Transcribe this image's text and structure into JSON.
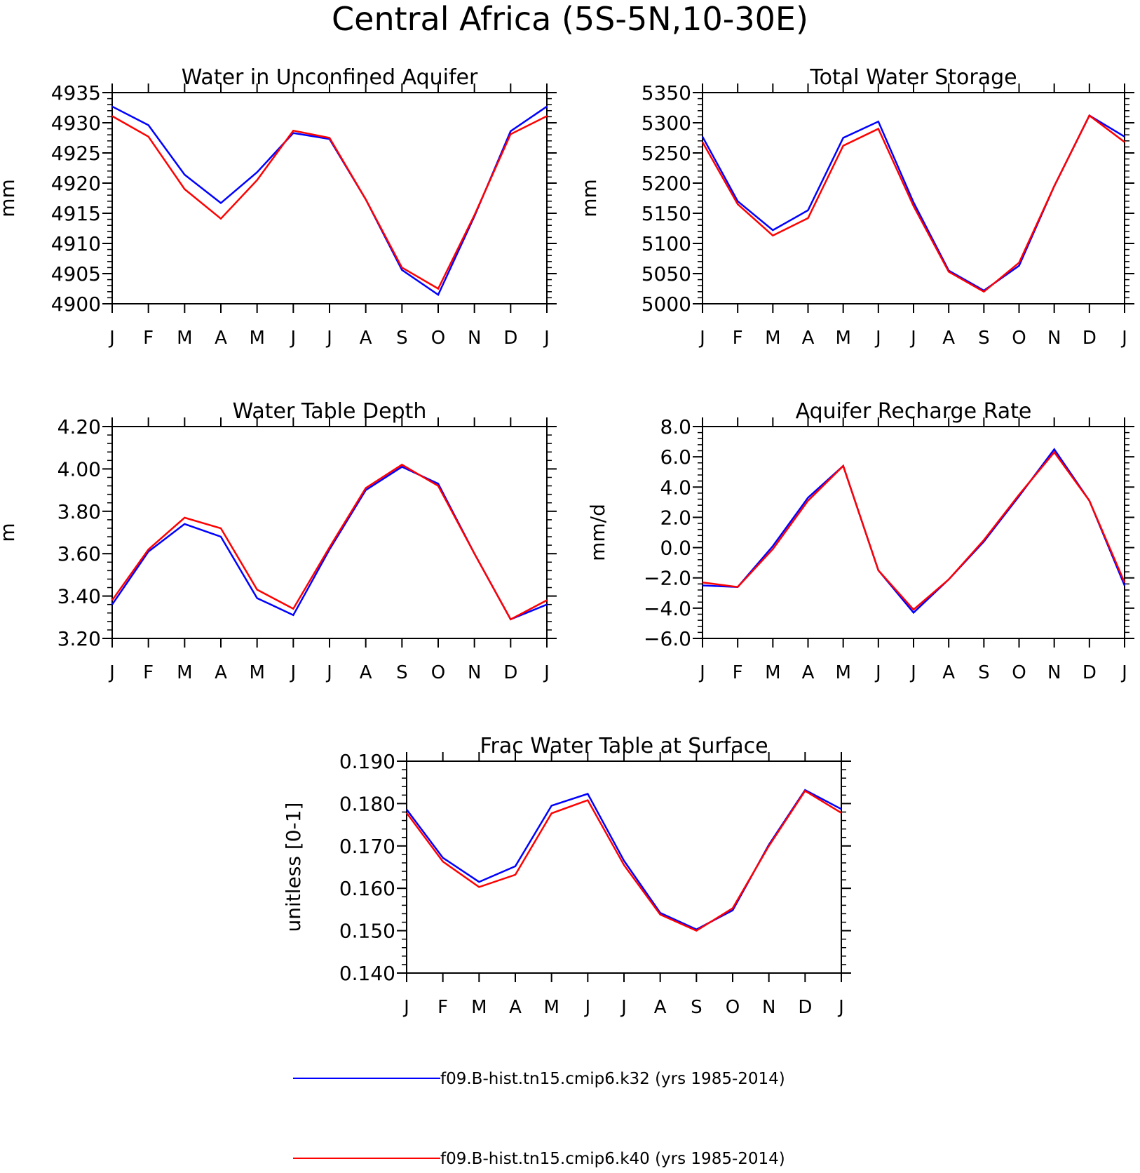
{
  "figure_title": "Central Africa (5S-5N,10-30E)",
  "legend": [
    {
      "label": "f09.B-hist.tn15.cmip6.k32 (yrs 1985-2014)",
      "color": "#0000ff"
    },
    {
      "label": "f09.B-hist.tn15.cmip6.k40 (yrs 1985-2014)",
      "color": "#ff0000"
    }
  ],
  "chart_data": [
    {
      "type": "line",
      "title": "Water in Unconfined Aquifer",
      "ylabel": "mm",
      "xlabel": "",
      "categories": [
        "J",
        "F",
        "M",
        "A",
        "M",
        "J",
        "J",
        "A",
        "S",
        "O",
        "N",
        "D",
        "J"
      ],
      "ylim": [
        4900,
        4935
      ],
      "yticks": [
        4900,
        4905,
        4910,
        4915,
        4920,
        4925,
        4930,
        4935
      ],
      "ytick_labels": [
        "4900",
        "4905",
        "4910",
        "4915",
        "4920",
        "4925",
        "4930",
        "4935"
      ],
      "series": [
        {
          "name": "f09.B-hist.tn15.cmip6.k32 (yrs 1985-2014)",
          "color": "#0000ff",
          "values": [
            4932.7,
            4929.6,
            4921.4,
            4916.7,
            4921.8,
            4928.3,
            4927.3,
            4917.3,
            4905.6,
            4901.5,
            4914.5,
            4928.6,
            4932.7
          ]
        },
        {
          "name": "f09.B-hist.tn15.cmip6.k40 (yrs 1985-2014)",
          "color": "#ff0000",
          "values": [
            4931.1,
            4927.7,
            4919.0,
            4914.1,
            4920.5,
            4928.7,
            4927.5,
            4917.3,
            4906.0,
            4902.5,
            4914.7,
            4928.1,
            4931.1
          ]
        }
      ]
    },
    {
      "type": "line",
      "title": "Total Water Storage",
      "ylabel": "mm",
      "xlabel": "",
      "categories": [
        "J",
        "F",
        "M",
        "A",
        "M",
        "J",
        "J",
        "A",
        "S",
        "O",
        "N",
        "D",
        "J"
      ],
      "ylim": [
        5000,
        5350
      ],
      "yticks": [
        5000,
        5050,
        5100,
        5150,
        5200,
        5250,
        5300,
        5350
      ],
      "ytick_labels": [
        "5000",
        "5050",
        "5100",
        "5150",
        "5200",
        "5250",
        "5300",
        "5350"
      ],
      "series": [
        {
          "name": "f09.B-hist.tn15.cmip6.k32 (yrs 1985-2014)",
          "color": "#0000ff",
          "values": [
            5277,
            5170,
            5122,
            5155,
            5275,
            5302,
            5168,
            5055,
            5022,
            5063,
            5195,
            5312,
            5277
          ]
        },
        {
          "name": "f09.B-hist.tn15.cmip6.k40 (yrs 1985-2014)",
          "color": "#ff0000",
          "values": [
            5268,
            5165,
            5113,
            5142,
            5262,
            5290,
            5162,
            5053,
            5020,
            5068,
            5195,
            5312,
            5268
          ]
        }
      ]
    },
    {
      "type": "line",
      "title": "Water Table Depth",
      "ylabel": "m",
      "xlabel": "",
      "categories": [
        "J",
        "F",
        "M",
        "A",
        "M",
        "J",
        "J",
        "A",
        "S",
        "O",
        "N",
        "D",
        "J"
      ],
      "ylim": [
        3.2,
        4.2
      ],
      "yticks": [
        3.2,
        3.4,
        3.6,
        3.8,
        4.0,
        4.2
      ],
      "ytick_labels": [
        "3.20",
        "3.40",
        "3.60",
        "3.80",
        "4.00",
        "4.20"
      ],
      "series": [
        {
          "name": "f09.B-hist.tn15.cmip6.k32 (yrs 1985-2014)",
          "color": "#0000ff",
          "values": [
            3.36,
            3.61,
            3.74,
            3.68,
            3.39,
            3.31,
            3.62,
            3.9,
            4.01,
            3.93,
            3.6,
            3.29,
            3.36
          ]
        },
        {
          "name": "f09.B-hist.tn15.cmip6.k40 (yrs 1985-2014)",
          "color": "#ff0000",
          "values": [
            3.38,
            3.62,
            3.77,
            3.72,
            3.43,
            3.34,
            3.63,
            3.91,
            4.02,
            3.92,
            3.6,
            3.29,
            3.38
          ]
        }
      ]
    },
    {
      "type": "line",
      "title": "Aquifer Recharge Rate",
      "ylabel": "mm/d",
      "xlabel": "",
      "categories": [
        "J",
        "F",
        "M",
        "A",
        "M",
        "J",
        "J",
        "A",
        "S",
        "O",
        "N",
        "D",
        "J"
      ],
      "ylim": [
        -6.0,
        8.0
      ],
      "yticks": [
        -6,
        -4,
        -2,
        0,
        2,
        4,
        6,
        8
      ],
      "ytick_labels": [
        "−6.0",
        "−4.0",
        "−2.0",
        "0.0",
        "2.0",
        "4.0",
        "6.0",
        "8.0"
      ],
      "series": [
        {
          "name": "f09.B-hist.tn15.cmip6.k32 (yrs 1985-2014)",
          "color": "#0000ff",
          "values": [
            -2.5,
            -2.6,
            0.1,
            3.3,
            5.4,
            -1.5,
            -4.3,
            -2.1,
            0.4,
            3.4,
            6.5,
            3.1,
            -2.5
          ]
        },
        {
          "name": "f09.B-hist.tn15.cmip6.k40 (yrs 1985-2014)",
          "color": "#ff0000",
          "values": [
            -2.3,
            -2.6,
            -0.1,
            3.1,
            5.4,
            -1.5,
            -4.1,
            -2.1,
            0.5,
            3.5,
            6.3,
            3.1,
            -2.3
          ]
        }
      ]
    },
    {
      "type": "line",
      "title": "Frac Water Table at Surface",
      "ylabel": "unitless [0-1]",
      "xlabel": "",
      "categories": [
        "J",
        "F",
        "M",
        "A",
        "M",
        "J",
        "J",
        "A",
        "S",
        "O",
        "N",
        "D",
        "J"
      ],
      "ylim": [
        0.14,
        0.19
      ],
      "yticks": [
        0.14,
        0.15,
        0.16,
        0.17,
        0.18,
        0.19
      ],
      "ytick_labels": [
        "0.140",
        "0.150",
        "0.160",
        "0.170",
        "0.180",
        "0.190"
      ],
      "series": [
        {
          "name": "f09.B-hist.tn15.cmip6.k32 (yrs 1985-2014)",
          "color": "#0000ff",
          "values": [
            0.1786,
            0.1672,
            0.1615,
            0.1652,
            0.1795,
            0.1823,
            0.1665,
            0.1542,
            0.1503,
            0.1548,
            0.1703,
            0.1832,
            0.1787
          ]
        },
        {
          "name": "f09.B-hist.tn15.cmip6.k40 (yrs 1985-2014)",
          "color": "#ff0000",
          "values": [
            0.1778,
            0.1663,
            0.1603,
            0.1632,
            0.1777,
            0.1808,
            0.1655,
            0.1538,
            0.15,
            0.1553,
            0.17,
            0.183,
            0.1778
          ]
        }
      ]
    }
  ]
}
